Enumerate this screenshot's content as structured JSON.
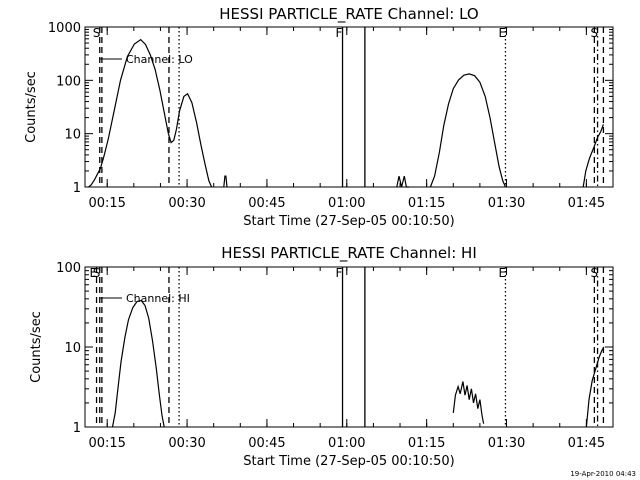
{
  "footer": {
    "timestamp": "19-Apr-2010 04:43"
  },
  "chart_data": [
    {
      "type": "line",
      "title": "HESSI PARTICLE_RATE Channel: LO",
      "xlabel": "Start Time (27-Sep-05 00:10:50)",
      "ylabel": "Counts/sec",
      "yscale": "log",
      "xlim_minutes": [
        10.83,
        110
      ],
      "ylim": [
        1,
        1000
      ],
      "xticks": [
        "00:15",
        "00:30",
        "00:45",
        "01:00",
        "01:15",
        "01:30",
        "01:45"
      ],
      "yticks": [
        "1",
        "10",
        "100",
        "1000"
      ],
      "grid": false,
      "legend_position": "top-left",
      "series": [
        {
          "name": "Channel: LO",
          "x_minutes": [
            11.5,
            12.0,
            12.6,
            13.1,
            13.7,
            14.3,
            15.2,
            16.4,
            17.5,
            18.8,
            20.1,
            21.3,
            22.2,
            23.1,
            24.0,
            24.9,
            25.7,
            26.5,
            27.0,
            27.5,
            28.0,
            28.6,
            29.4,
            30.1,
            30.9,
            31.8,
            32.6,
            33.4,
            34.1,
            34.6
          ],
          "y": [
            1.0,
            1.1,
            1.35,
            1.7,
            2.2,
            3.5,
            8,
            30,
            100,
            280,
            480,
            580,
            470,
            300,
            160,
            65,
            25,
            10,
            6.8,
            7.5,
            12,
            27,
            50,
            56,
            38,
            16,
            6.2,
            2.6,
            1.3,
            1.0
          ]
        },
        {
          "x_minutes": [
            36.9,
            37.1,
            37.3,
            37.5
          ],
          "y": [
            1.0,
            1.6,
            1.6,
            1.0
          ]
        },
        {
          "x_minutes": [
            69.4,
            69.8,
            70.3,
            70.8,
            71.2,
            71.7
          ],
          "y": [
            1.0,
            1.6,
            1.0,
            1.6,
            1.0,
            1.0
          ]
        },
        {
          "x_minutes": [
            75.7,
            76.5,
            77.4,
            78.2,
            79.1,
            80.0,
            81.0,
            82.0,
            83.0,
            84.0,
            85.0,
            86.0,
            86.9,
            87.8,
            88.6,
            89.3,
            89.8
          ],
          "y": [
            1.0,
            1.6,
            4.5,
            14,
            36,
            70,
            102,
            125,
            132,
            122,
            92,
            50,
            20,
            6.5,
            2.4,
            1.3,
            1.0
          ]
        },
        {
          "x_minutes": [
            104.4,
            104.9,
            105.6,
            106.4,
            107.1,
            107.7,
            108.2
          ],
          "y": [
            1.0,
            2.0,
            3.5,
            5.5,
            8.5,
            11,
            15
          ]
        }
      ],
      "markers": [
        {
          "label": "S",
          "x_minutes": 13.6,
          "style": "dashed"
        },
        {
          "label": "",
          "x_minutes": 14.0,
          "style": "dashed"
        },
        {
          "label": "",
          "x_minutes": 26.6,
          "style": "dashed"
        },
        {
          "label": "",
          "x_minutes": 28.5,
          "style": "dotted"
        },
        {
          "label": "F",
          "x_minutes": 59.2,
          "style": "solid"
        },
        {
          "label": "",
          "x_minutes": 63.4,
          "style": "solid"
        },
        {
          "label": "E",
          "x_minutes": 89.8,
          "style": "dotted"
        },
        {
          "label": "",
          "x_minutes": 106.5,
          "style": "dashed"
        },
        {
          "label": "S",
          "x_minutes": 107.1,
          "style": "dashdot"
        },
        {
          "label": "",
          "x_minutes": 108.2,
          "style": "dashed"
        }
      ]
    },
    {
      "type": "line",
      "title": "HESSI PARTICLE_RATE Channel: HI",
      "xlabel": "Start Time (27-Sep-05 00:10:50)",
      "ylabel": "Counts/sec",
      "yscale": "log",
      "xlim_minutes": [
        10.83,
        110
      ],
      "ylim": [
        1,
        100
      ],
      "xticks": [
        "00:15",
        "00:30",
        "00:45",
        "01:00",
        "01:15",
        "01:30",
        "01:45"
      ],
      "yticks": [
        "1",
        "10",
        "100"
      ],
      "grid": false,
      "legend_position": "top-left",
      "series": [
        {
          "name": "Channel: HI",
          "x_minutes": [
            16.0,
            16.5,
            17.0,
            17.6,
            18.3,
            19.0,
            19.8,
            20.6,
            21.4,
            22.1,
            22.8,
            23.5,
            24.2,
            24.8,
            25.3,
            25.7
          ],
          "y": [
            1.0,
            1.5,
            3.0,
            6.5,
            13,
            22,
            31,
            37,
            38,
            33,
            23,
            12,
            5.5,
            2.5,
            1.4,
            1.0
          ]
        },
        {
          "x_minutes": [
            80.0,
            80.4,
            80.9,
            81.3,
            81.8,
            82.2,
            82.6,
            83.0,
            83.4,
            83.8,
            84.2,
            84.6,
            85.0,
            85.4,
            85.7
          ],
          "y": [
            1.5,
            2.5,
            3.2,
            2.6,
            3.7,
            2.5,
            3.3,
            2.2,
            3.0,
            2.0,
            2.6,
            1.7,
            2.2,
            1.4,
            1.1
          ]
        },
        {
          "x_minutes": [
            105.0,
            105.5,
            106.1,
            106.8,
            107.4,
            107.9,
            108.3
          ],
          "y": [
            1.0,
            2.2,
            3.8,
            5.5,
            7.5,
            9,
            10
          ]
        }
      ],
      "markers": [
        {
          "label": "E",
          "x_minutes": 13.0,
          "style": "dashed"
        },
        {
          "label": "S",
          "x_minutes": 13.6,
          "style": "dashed"
        },
        {
          "label": "",
          "x_minutes": 14.0,
          "style": "dashed"
        },
        {
          "label": "",
          "x_minutes": 26.6,
          "style": "dashed"
        },
        {
          "label": "",
          "x_minutes": 28.5,
          "style": "dotted"
        },
        {
          "label": "F",
          "x_minutes": 59.2,
          "style": "solid"
        },
        {
          "label": "",
          "x_minutes": 63.4,
          "style": "solid"
        },
        {
          "label": "E",
          "x_minutes": 89.8,
          "style": "dotted"
        },
        {
          "label": "",
          "x_minutes": 106.5,
          "style": "dashed"
        },
        {
          "label": "S",
          "x_minutes": 107.1,
          "style": "dashdot"
        },
        {
          "label": "",
          "x_minutes": 108.2,
          "style": "dashed"
        }
      ]
    }
  ]
}
